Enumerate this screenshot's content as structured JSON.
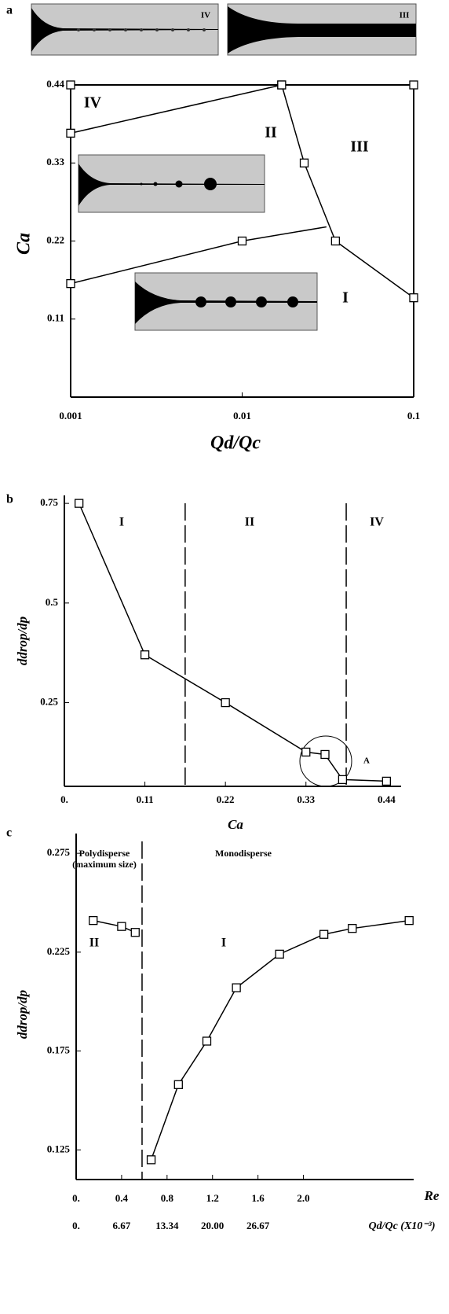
{
  "chart_data": [
    {
      "type": "line",
      "panel_label": "a",
      "x_label": "Qd/Qc",
      "y_label": "Ca",
      "x_scale": "log",
      "xlim": [
        0.001,
        0.1
      ],
      "xticks": [
        0.001,
        0.01,
        0.1
      ],
      "ylim": [
        0,
        0.44
      ],
      "yticks": [
        0.11,
        0.22,
        0.33,
        0.44
      ],
      "color": "#000000",
      "series": [
        {
          "x": [
            0.001,
            0.017
          ],
          "values": [
            0.372,
            0.44
          ]
        },
        {
          "x": [
            0.017,
            0.023,
            0.035,
            0.1
          ],
          "values": [
            0.44,
            0.33,
            0.22,
            0.14
          ]
        },
        {
          "x": [
            0.001,
            0.01,
            0.031
          ],
          "values": [
            0.16,
            0.22,
            0.24
          ],
          "markers": [
            true,
            true,
            false
          ]
        },
        {
          "x": [
            0.001,
            0.1
          ],
          "values": [
            0.44,
            0.44
          ],
          "line": false
        }
      ],
      "annotations": [
        "IV",
        "II",
        "III",
        "I",
        "IV",
        "III"
      ]
    },
    {
      "type": "line",
      "panel_label": "b",
      "x_label": "Ca",
      "y_label": "ddrop/dp",
      "xlim": [
        0,
        0.46
      ],
      "xticks": [
        {
          "value": 0,
          "label": "0."
        },
        0.11,
        0.22,
        0.33,
        0.44
      ],
      "ylim": [
        0.04,
        0.77
      ],
      "yticks": [
        0.25,
        0.5,
        0.75
      ],
      "color": "#000000",
      "series": [
        {
          "x": [
            0.02,
            0.11,
            0.22,
            0.33,
            0.356,
            0.38,
            0.44
          ],
          "values": [
            0.75,
            0.37,
            0.25,
            0.126,
            0.12,
            0.057,
            0.053
          ]
        }
      ],
      "vlines": [
        0.165,
        0.385
      ],
      "annotations": [
        "I",
        "II",
        "IV",
        "A"
      ]
    },
    {
      "type": "line",
      "panel_label": "c",
      "x_label": "Re",
      "x2_label": "Qd/Qc (X10⁻³)",
      "y_label": "ddrop/dp",
      "xlim": [
        0,
        2.97
      ],
      "xticks": [
        {
          "value": 0,
          "label": "0."
        },
        0.4,
        0.8,
        1.2,
        1.6,
        {
          "value": 2,
          "label": "2.0"
        }
      ],
      "x2lim": [
        0,
        49.52
      ],
      "x2ticks": [
        {
          "value": 0,
          "label": "0."
        },
        6.67,
        13.34,
        {
          "value": 20,
          "label": "20.00"
        },
        26.67
      ],
      "ylim": [
        0.11,
        0.285
      ],
      "yticks": [
        0.125,
        0.175,
        0.225,
        0.275
      ],
      "color": "#000000",
      "series": [
        {
          "x": [
            0.15,
            0.4,
            0.52
          ],
          "values": [
            0.241,
            0.238,
            0.235
          ]
        },
        {
          "x": [
            0.66,
            0.9,
            1.15,
            1.41,
            1.79,
            2.18,
            2.43,
            2.93
          ],
          "values": [
            0.12,
            0.158,
            0.18,
            0.207,
            0.224,
            0.234,
            0.237,
            0.241
          ]
        }
      ],
      "vlines": [
        0.58
      ],
      "annotations": [
        "Polydisperse",
        "(maximum size)",
        "Monodisperse",
        "II",
        "I"
      ]
    }
  ]
}
